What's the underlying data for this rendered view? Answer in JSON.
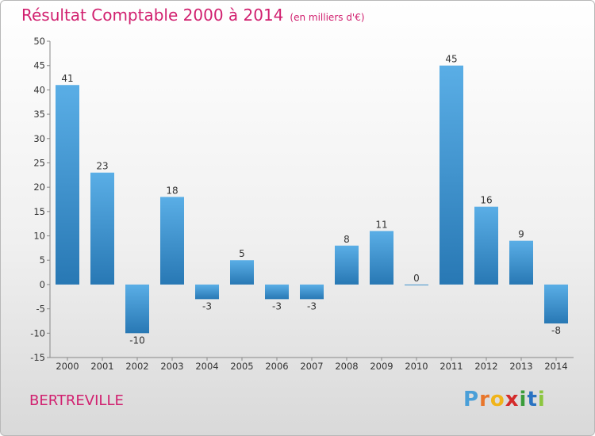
{
  "title": "Résultat Comptable 2000 à 2014",
  "subtitle": "(en milliers d'€)",
  "commune": "BERTREVILLE",
  "logo": {
    "letters": [
      "P",
      "r",
      "o",
      "x",
      "i",
      "t",
      "i"
    ],
    "colors": [
      "#4a9fd8",
      "#e8762b",
      "#f0b41a",
      "#d42b2b",
      "#3a9c3a",
      "#2a73c2",
      "#8cc63f"
    ]
  },
  "colors": {
    "title": "#d1206f",
    "bar_light": "#5aaee6",
    "bar_dark": "#2878b4"
  },
  "chart_data": {
    "type": "bar",
    "categories": [
      "2000",
      "2001",
      "2002",
      "2003",
      "2004",
      "2005",
      "2006",
      "2007",
      "2008",
      "2009",
      "2010",
      "2011",
      "2012",
      "2013",
      "2014"
    ],
    "values": [
      41,
      23,
      -10,
      18,
      -3,
      5,
      -3,
      -3,
      8,
      11,
      0,
      45,
      16,
      9,
      -8
    ],
    "ylim": [
      -15,
      50
    ],
    "yticks": [
      -15,
      -10,
      -5,
      0,
      5,
      10,
      15,
      20,
      25,
      30,
      35,
      40,
      45,
      50
    ],
    "grid": false
  }
}
